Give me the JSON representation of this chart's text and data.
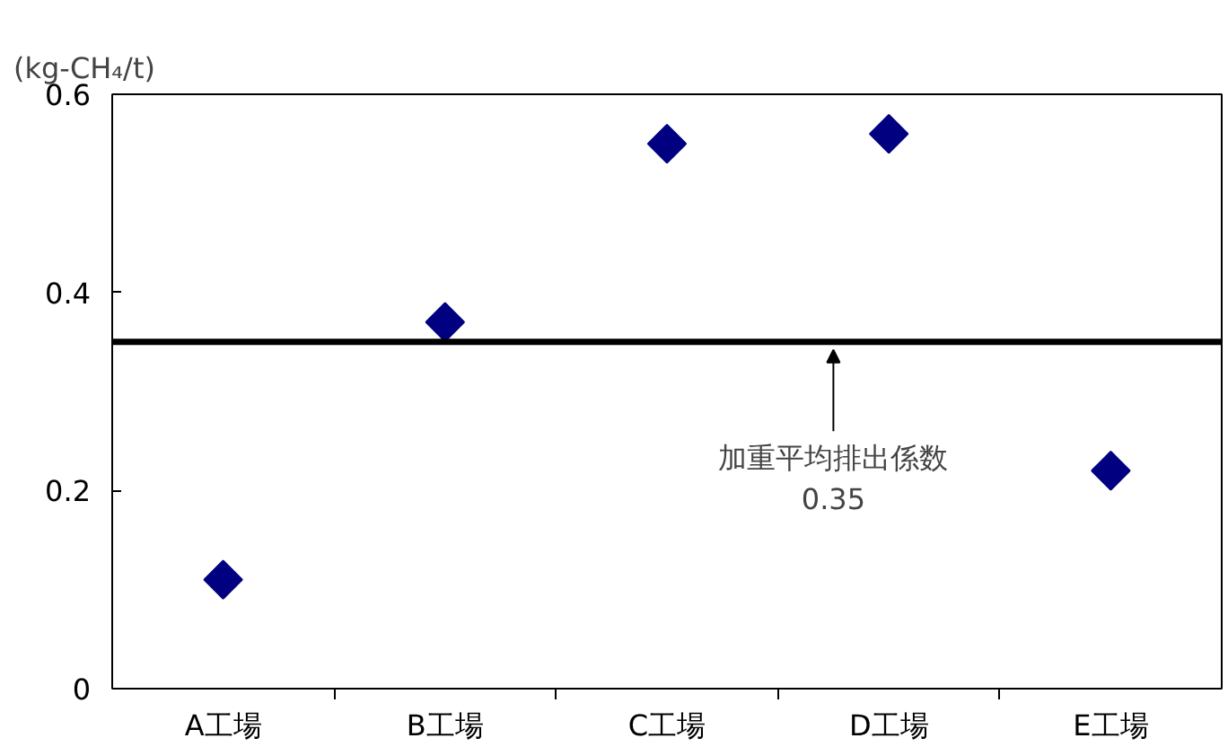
{
  "chart_data": {
    "type": "scatter",
    "ylabel": "(kg-CH₄/t)",
    "categories": [
      "A工場",
      "B工場",
      "C工場",
      "D工場",
      "E工場"
    ],
    "series": [
      {
        "color": "#000080",
        "values": [
          0.11,
          0.37,
          0.55,
          0.56,
          0.22
        ]
      }
    ],
    "ylim": [
      0,
      0.6
    ],
    "yticks": [
      0,
      0.2,
      0.4,
      0.6
    ],
    "grid": false,
    "marker": "diamond",
    "ref_lines": [
      {
        "axis": "y",
        "value": 0.35,
        "label": "加重平均排出係数\n0.35",
        "color": "#000000",
        "line_style": "solid"
      }
    ]
  }
}
